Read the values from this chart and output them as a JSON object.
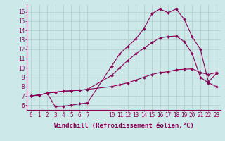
{
  "background_color": "#cce8e8",
  "grid_color": "#b0c8c8",
  "line_color": "#880055",
  "marker": "D",
  "markersize": 2.0,
  "linewidth": 0.8,
  "xlabel": "Windchill (Refroidissement éolien,°C)",
  "xlabel_fontsize": 6.5,
  "tick_fontsize": 5.5,
  "ylim": [
    5.5,
    16.8
  ],
  "xlim": [
    -0.5,
    23.5
  ],
  "xticks": [
    0,
    1,
    2,
    3,
    4,
    5,
    6,
    7,
    10,
    11,
    12,
    13,
    14,
    15,
    16,
    17,
    18,
    19,
    20,
    21,
    22,
    23
  ],
  "yticks": [
    6,
    7,
    8,
    9,
    10,
    11,
    12,
    13,
    14,
    15,
    16
  ],
  "line1_x": [
    0,
    1,
    2,
    3,
    4,
    5,
    6,
    7,
    10,
    11,
    12,
    13,
    14,
    15,
    16,
    17,
    18,
    19,
    20,
    21,
    22,
    23
  ],
  "line1_y": [
    7.0,
    7.1,
    7.3,
    7.4,
    7.5,
    7.55,
    7.6,
    7.7,
    8.0,
    8.2,
    8.4,
    8.7,
    9.0,
    9.3,
    9.5,
    9.6,
    9.8,
    9.85,
    9.9,
    9.5,
    9.3,
    9.5
  ],
  "line2_x": [
    0,
    1,
    2,
    3,
    4,
    5,
    6,
    7,
    10,
    11,
    12,
    13,
    14,
    15,
    16,
    17,
    18,
    19,
    20,
    21,
    22,
    23
  ],
  "line2_y": [
    7.0,
    7.1,
    7.3,
    5.85,
    5.9,
    6.0,
    6.15,
    6.25,
    10.2,
    11.5,
    12.3,
    13.1,
    14.2,
    15.8,
    16.3,
    15.9,
    16.3,
    15.2,
    13.3,
    12.0,
    8.5,
    9.4
  ],
  "line3_x": [
    0,
    1,
    2,
    3,
    4,
    5,
    6,
    7,
    10,
    11,
    12,
    13,
    14,
    15,
    16,
    17,
    18,
    19,
    20,
    21,
    22,
    23
  ],
  "line3_y": [
    7.0,
    7.1,
    7.3,
    7.4,
    7.5,
    7.55,
    7.6,
    7.7,
    9.2,
    10.0,
    10.8,
    11.5,
    12.1,
    12.7,
    13.2,
    13.35,
    13.4,
    12.8,
    11.5,
    9.0,
    8.4,
    8.0
  ]
}
